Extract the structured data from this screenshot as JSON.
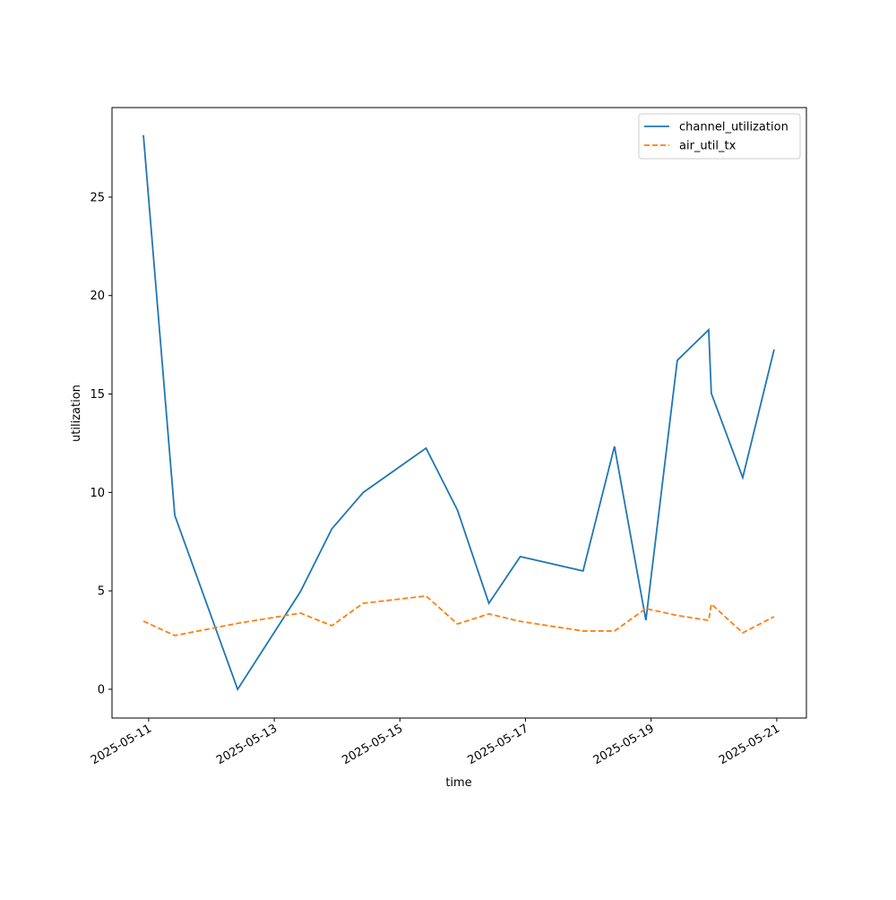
{
  "chart_data": {
    "type": "line",
    "xlabel": "time",
    "ylabel": "utilization",
    "x": [
      "2025-05-10T22:00",
      "2025-05-11T10:00",
      "2025-05-12T10:00",
      "2025-05-13T10:00",
      "2025-05-13T22:00",
      "2025-05-14T10:00",
      "2025-05-15T10:00",
      "2025-05-15T22:00",
      "2025-05-16T10:00",
      "2025-05-16T22:00",
      "2025-05-17T22:00",
      "2025-05-18T10:00",
      "2025-05-18T22:00",
      "2025-05-19T10:00",
      "2025-05-19T22:00",
      "2025-05-19T23:00",
      "2025-05-20T11:00",
      "2025-05-20T23:00"
    ],
    "series": [
      {
        "name": "channel_utilization",
        "color": "#1f77b4",
        "dash": "solid",
        "values": [
          28.15,
          8.83,
          0,
          4.96,
          8.15,
          10.0,
          12.25,
          9.1,
          4.37,
          6.74,
          6.01,
          12.34,
          3.51,
          16.71,
          18.26,
          15.03,
          10.75,
          17.26
        ]
      },
      {
        "name": "air_util_tx",
        "color": "#ff7f0e",
        "dash": "dashed",
        "values": [
          3.46,
          2.73,
          3.35,
          3.87,
          3.23,
          4.37,
          4.74,
          3.32,
          3.83,
          3.45,
          2.96,
          2.96,
          4.1,
          3.75,
          3.5,
          4.33,
          2.87,
          3.69
        ]
      }
    ],
    "xlim": [
      "2025-05-10T10:00",
      "2025-05-21T11:20"
    ],
    "xticks": [
      "2025-05-11",
      "2025-05-13",
      "2025-05-15",
      "2025-05-17",
      "2025-05-19",
      "2025-05-21"
    ],
    "ylim": [
      -1.46,
      29.55
    ],
    "yticks": [
      0,
      5,
      10,
      15,
      20,
      25
    ],
    "legend": "upper right",
    "grid": false
  }
}
